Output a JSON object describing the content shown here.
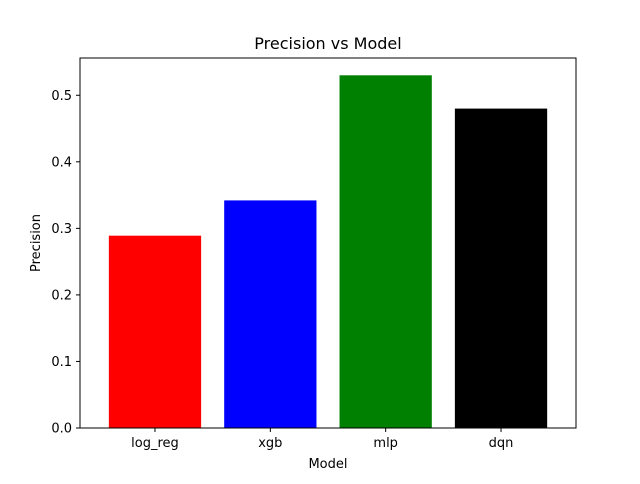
{
  "chart_data": {
    "type": "bar",
    "title": "Precision vs Model",
    "xlabel": "Model",
    "ylabel": "Precision",
    "categories": [
      "log_reg",
      "xgb",
      "mlp",
      "dqn"
    ],
    "values": [
      0.289,
      0.342,
      0.53,
      0.48
    ],
    "colors": [
      "#ff0000",
      "#0000ff",
      "#008000",
      "#000000"
    ],
    "ylim": [
      0,
      0.556
    ],
    "yticks": [
      0.0,
      0.1,
      0.2,
      0.3,
      0.4,
      0.5
    ],
    "ytick_labels": [
      "0.0",
      "0.1",
      "0.2",
      "0.3",
      "0.4",
      "0.5"
    ],
    "grid": false,
    "legend": "none"
  }
}
